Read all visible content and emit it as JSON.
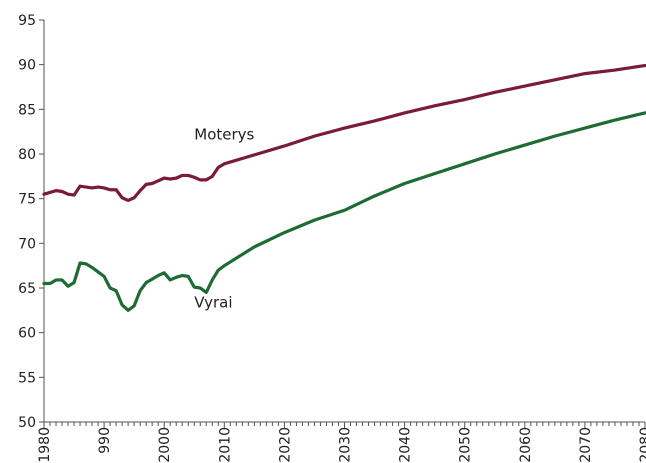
{
  "chart_data": {
    "type": "line",
    "title": "",
    "xlabel": "",
    "ylabel": "",
    "xlim": [
      1980,
      2080
    ],
    "ylim": [
      50,
      95
    ],
    "grid": false,
    "legend": "none",
    "y_ticks": [
      "50",
      "55",
      "60",
      "65",
      "70",
      "75",
      "80",
      "85",
      "90",
      "95"
    ],
    "x_ticks": [
      "1980",
      "1990",
      "2000",
      "2010",
      "2020",
      "2030",
      "2040",
      "2050",
      "2060",
      "2070",
      "2080"
    ],
    "x_tick_display": [
      "1980",
      "990",
      "2000",
      "2010",
      "2020",
      "2030",
      "2040",
      "2050",
      "2060",
      "2070",
      "2080"
    ],
    "series": [
      {
        "name": "Moterys",
        "color": "#7a1a3c",
        "x": [
          1980,
          1981,
          1982,
          1983,
          1984,
          1985,
          1986,
          1987,
          1988,
          1989,
          1990,
          1991,
          1992,
          1993,
          1994,
          1995,
          1996,
          1997,
          1998,
          1999,
          2000,
          2001,
          2002,
          2003,
          2004,
          2005,
          2006,
          2007,
          2008,
          2009,
          2010,
          2015,
          2020,
          2025,
          2030,
          2035,
          2040,
          2045,
          2050,
          2055,
          2060,
          2065,
          2070,
          2075,
          2080
        ],
        "values": [
          75.5,
          75.7,
          75.9,
          75.8,
          75.5,
          75.4,
          76.4,
          76.3,
          76.2,
          76.3,
          76.2,
          76.0,
          76.0,
          75.1,
          74.8,
          75.1,
          75.9,
          76.6,
          76.7,
          77.0,
          77.3,
          77.2,
          77.3,
          77.6,
          77.6,
          77.4,
          77.1,
          77.1,
          77.5,
          78.5,
          78.9,
          79.9,
          80.9,
          82.0,
          82.9,
          83.7,
          84.6,
          85.4,
          86.1,
          86.9,
          87.6,
          88.3,
          89.0,
          89.4,
          89.9
        ]
      },
      {
        "name": "Vyrai",
        "color": "#1e6b34",
        "x": [
          1980,
          1981,
          1982,
          1983,
          1984,
          1985,
          1986,
          1987,
          1988,
          1989,
          1990,
          1991,
          1992,
          1993,
          1994,
          1995,
          1996,
          1997,
          1998,
          1999,
          2000,
          2001,
          2002,
          2003,
          2004,
          2005,
          2006,
          2007,
          2008,
          2009,
          2010,
          2015,
          2020,
          2025,
          2030,
          2035,
          2040,
          2045,
          2050,
          2055,
          2060,
          2065,
          2070,
          2075,
          2080
        ],
        "values": [
          65.5,
          65.5,
          65.9,
          65.9,
          65.2,
          65.6,
          67.8,
          67.7,
          67.3,
          66.8,
          66.3,
          65.0,
          64.7,
          63.1,
          62.5,
          63.0,
          64.7,
          65.6,
          66.0,
          66.4,
          66.7,
          65.9,
          66.2,
          66.4,
          66.3,
          65.1,
          65.0,
          64.5,
          65.9,
          67.0,
          67.5,
          69.6,
          71.2,
          72.6,
          73.7,
          75.3,
          76.7,
          77.8,
          78.9,
          80.0,
          81.0,
          82.0,
          82.9,
          83.8,
          84.6
        ]
      }
    ],
    "annotations": [
      {
        "text": "Moterys",
        "x": 2005,
        "y": 81.6
      },
      {
        "text": "Vyrai",
        "x": 2005,
        "y": 62.8
      }
    ]
  }
}
